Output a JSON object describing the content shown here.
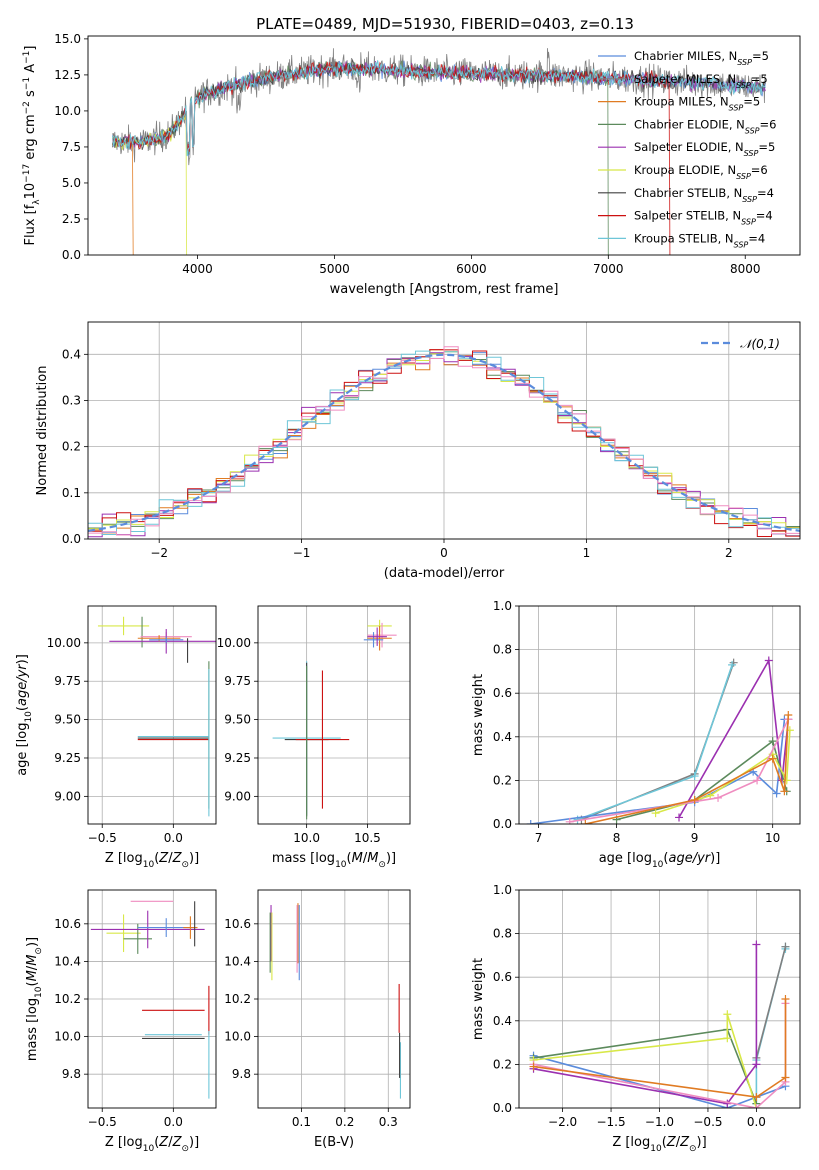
{
  "figure": {
    "title": "PLATE=0489, MJD=51930, FIBERID=0403, z=0.13"
  },
  "chart_data": [
    {
      "id": "spectrum",
      "type": "line",
      "xlabel": "wavelength [Angstrom, rest frame]",
      "ylabel": "Flux [f_λ10^-17 erg cm^-2 s^-1 A^-1]",
      "xlim": [
        3200,
        8400
      ],
      "ylim": [
        0,
        15.2
      ],
      "xticks": [
        4000,
        5000,
        6000,
        7000,
        8000
      ],
      "yticks": [
        0.0,
        2.5,
        5.0,
        7.5,
        10.0,
        12.5,
        15.0
      ],
      "xtick_labels": [
        "4000",
        "5000",
        "6000",
        "7000",
        "8000"
      ],
      "ytick_labels": [
        "0.0",
        "2.5",
        "5.0",
        "7.5",
        "10.0",
        "12.5",
        "15.0"
      ],
      "observed_color": "#808080",
      "legend_position": "top-right",
      "continuum": {
        "x": [
          3380,
          3600,
          3800,
          3950,
          4050,
          4200,
          4400,
          4700,
          5000,
          5300,
          5600,
          6000,
          6400,
          6800,
          7200,
          7600,
          8000,
          8150
        ],
        "y": [
          7.9,
          7.8,
          8.4,
          10.5,
          11.2,
          11.6,
          12.1,
          12.6,
          13.0,
          12.9,
          12.7,
          12.6,
          12.5,
          12.4,
          12.2,
          12.0,
          11.7,
          11.6
        ]
      },
      "models": [
        {
          "name": "Chabrier MILES, N_SSP=5",
          "color": "#5b8cdc",
          "drop_x": null
        },
        {
          "name": "Salpeter MILES, N_SSP=5",
          "color": "#7f7f7f",
          "drop_x": null
        },
        {
          "name": "Kroupa MILES, N_SSP=5",
          "color": "#e07b22",
          "drop_x": 3530
        },
        {
          "name": "Chabrier ELODIE, N_SSP=6",
          "color": "#5c8a5c",
          "drop_x": 7000
        },
        {
          "name": "Salpeter ELODIE, N_SSP=5",
          "color": "#9b30b0",
          "drop_x": null
        },
        {
          "name": "Kroupa ELODIE, N_SSP=6",
          "color": "#d8e848",
          "drop_x": 3920
        },
        {
          "name": "Chabrier STELIB, N_SSP=4",
          "color": "#404040",
          "drop_x": null
        },
        {
          "name": "Salpeter STELIB, N_SSP=4",
          "color": "#cc1111",
          "drop_x": 7450
        },
        {
          "name": "Kroupa STELIB, N_SSP=4",
          "color": "#6ec6d8",
          "drop_x": 3380
        }
      ]
    },
    {
      "id": "residuals",
      "type": "histogram",
      "xlabel": "(data-model)/error",
      "ylabel": "Normed distribution",
      "xlim": [
        -2.5,
        2.5
      ],
      "ylim": [
        0,
        0.47
      ],
      "xticks": [
        -2,
        -1,
        0,
        1,
        2
      ],
      "yticks": [
        0.0,
        0.1,
        0.2,
        0.3,
        0.4
      ],
      "xtick_labels": [
        "−2",
        "−1",
        "0",
        "1",
        "2"
      ],
      "ytick_labels": [
        "0.0",
        "0.1",
        "0.2",
        "0.3",
        "0.4"
      ],
      "bin_width": 0.1,
      "gaussian_label": "𝒩(0,1)",
      "gaussian_color": "#5b8cdc",
      "grid": true,
      "series_colors": [
        "#5b8cdc",
        "#e07b22",
        "#5c8a5c",
        "#9b30b0",
        "#d8e848",
        "#cc1111",
        "#6ec6d8",
        "#ef8dc0"
      ]
    },
    {
      "id": "age_vs_Z",
      "type": "errorbar",
      "xlabel": "Z [log10(Z/Z⊙)]",
      "ylabel": "age  [log10(age/yr)]",
      "xlim": [
        -0.6,
        0.3
      ],
      "ylim": [
        8.82,
        10.24
      ],
      "xticks": [
        -0.5,
        0.0
      ],
      "yticks": [
        9.0,
        9.25,
        9.5,
        9.75,
        10.0
      ],
      "xtick_labels": [
        "−0.5",
        "0.0"
      ],
      "ytick_labels": [
        "9.00",
        "9.25",
        "9.50",
        "9.75",
        "10.00"
      ],
      "points": [
        {
          "x": -0.35,
          "y": 10.11,
          "xerr": 0.18,
          "yerr": 0.06,
          "color": "#d8e848"
        },
        {
          "x": -0.22,
          "y": 10.07,
          "xerr": 0.0,
          "yerr": 0.1,
          "color": "#5c8a5c"
        },
        {
          "x": -0.05,
          "y": 10.04,
          "xerr": 0.18,
          "yerr": 0.03,
          "color": "#ef8dc0"
        },
        {
          "x": -0.05,
          "y": 10.01,
          "xerr": 0.4,
          "yerr": 0.08,
          "color": "#9b30b0"
        },
        {
          "x": -0.1,
          "y": 10.03,
          "xerr": 0.15,
          "yerr": 0.02,
          "color": "#e07b22"
        },
        {
          "x": -0.05,
          "y": 10.02,
          "xerr": 0.12,
          "yerr": 0.02,
          "color": "#5b8cdc"
        },
        {
          "x": 0.1,
          "y": 9.95,
          "xerr": 0.0,
          "yerr": 0.08,
          "color": "#404040"
        },
        {
          "x": 0.0,
          "y": 9.39,
          "xerr": 0.25,
          "yerr": 0.0,
          "color": "#6ec6d8"
        },
        {
          "x": 0.0,
          "y": 9.38,
          "xerr": 0.25,
          "yerr": 0.0,
          "color": "#404040"
        },
        {
          "x": 0.0,
          "y": 9.37,
          "xerr": 0.25,
          "yerr": 0.0,
          "color": "#cc1111"
        },
        {
          "x": 0.25,
          "y": 9.4,
          "xerr": 0.0,
          "yerr": 0.48,
          "color": "#5c8a5c"
        },
        {
          "x": 0.25,
          "y": 9.35,
          "xerr": 0.0,
          "yerr": 0.48,
          "color": "#6ec6d8"
        }
      ]
    },
    {
      "id": "age_vs_mass",
      "type": "errorbar",
      "xlabel": "mass [log10(M/M⊙)]",
      "ylabel": "",
      "xlim": [
        9.6,
        10.85
      ],
      "ylim": [
        8.82,
        10.24
      ],
      "xticks": [
        10.0,
        10.5
      ],
      "yticks": [
        9.0,
        9.25,
        9.5,
        9.75,
        10.0
      ],
      "xtick_labels": [
        "10.0",
        "10.5"
      ],
      "ytick_labels": [
        "9.00",
        "9.25",
        "9.50",
        "9.75",
        "10.00"
      ],
      "points": [
        {
          "x": 10.6,
          "y": 10.11,
          "xerr": 0.1,
          "yerr": 0.04,
          "color": "#d8e848"
        },
        {
          "x": 10.62,
          "y": 10.05,
          "xerr": 0.12,
          "yerr": 0.08,
          "color": "#ef8dc0"
        },
        {
          "x": 10.6,
          "y": 10.03,
          "xerr": 0.1,
          "yerr": 0.08,
          "color": "#e07b22"
        },
        {
          "x": 10.55,
          "y": 10.02,
          "xerr": 0.08,
          "yerr": 0.05,
          "color": "#5b8cdc"
        },
        {
          "x": 10.58,
          "y": 10.04,
          "xerr": 0.08,
          "yerr": 0.06,
          "color": "#9b30b0"
        },
        {
          "x": 10.0,
          "y": 9.38,
          "xerr": 0.28,
          "yerr": 0.5,
          "color": "#6ec6d8"
        },
        {
          "x": 10.0,
          "y": 9.37,
          "xerr": 0.18,
          "yerr": 0.5,
          "color": "#404040"
        },
        {
          "x": 10.13,
          "y": 9.37,
          "xerr": 0.22,
          "yerr": 0.45,
          "color": "#cc1111"
        },
        {
          "x": 10.0,
          "y": 9.35,
          "xerr": 0.0,
          "yerr": 0.5,
          "color": "#5c8a5c"
        }
      ]
    },
    {
      "id": "weight_vs_age",
      "type": "line",
      "xlabel": "age  [log10(age/yr)]",
      "ylabel": "mass weight",
      "xlim": [
        6.75,
        10.35
      ],
      "ylim": [
        0,
        1.0
      ],
      "xticks": [
        7,
        8,
        9,
        10
      ],
      "yticks": [
        0.0,
        0.2,
        0.4,
        0.6,
        0.8,
        1.0
      ],
      "xtick_labels": [
        "7",
        "8",
        "9",
        "10"
      ],
      "ytick_labels": [
        "0.0",
        "0.2",
        "0.4",
        "0.6",
        "0.8",
        "1.0"
      ],
      "grid": true,
      "series": [
        {
          "color": "#808080",
          "x": [
            7.55,
            9.0,
            9.5
          ],
          "y": [
            0.02,
            0.23,
            0.74
          ]
        },
        {
          "color": "#6ec6d8",
          "x": [
            7.5,
            9.0,
            9.48
          ],
          "y": [
            0.02,
            0.22,
            0.73
          ]
        },
        {
          "color": "#5b8cdc",
          "x": [
            6.9,
            9.0,
            9.75,
            10.05,
            10.15
          ],
          "y": [
            0.0,
            0.1,
            0.24,
            0.14,
            0.48
          ]
        },
        {
          "color": "#9b30b0",
          "x": [
            8.8,
            9.95,
            10.12,
            10.2
          ],
          "y": [
            0.03,
            0.75,
            0.2,
            0.48
          ]
        },
        {
          "color": "#5c8a5c",
          "x": [
            8.0,
            9.0,
            10.0,
            10.18
          ],
          "y": [
            0.02,
            0.11,
            0.38,
            0.15
          ]
        },
        {
          "color": "#d8e848",
          "x": [
            8.5,
            9.2,
            10.0,
            10.18,
            10.22
          ],
          "y": [
            0.05,
            0.13,
            0.32,
            0.2,
            0.43
          ]
        },
        {
          "color": "#ef8dc0",
          "x": [
            7.4,
            9.3,
            9.8,
            10.2
          ],
          "y": [
            0.01,
            0.12,
            0.2,
            0.48
          ]
        },
        {
          "color": "#e07b22",
          "x": [
            7.6,
            9.0,
            10.0,
            10.15,
            10.2
          ],
          "y": [
            0.0,
            0.11,
            0.3,
            0.15,
            0.5
          ]
        }
      ]
    },
    {
      "id": "mass_vs_Z",
      "type": "errorbar",
      "xlabel": "Z [log10(Z/Z⊙)]",
      "ylabel": "mass [log10(M/M⊙)]",
      "xlim": [
        -0.6,
        0.3
      ],
      "ylim": [
        9.62,
        10.78
      ],
      "xticks": [
        -0.5,
        0.0
      ],
      "yticks": [
        9.8,
        10.0,
        10.2,
        10.4,
        10.6
      ],
      "xtick_labels": [
        "−0.5",
        "0.0"
      ],
      "ytick_labels": [
        "9.8",
        "10.0",
        "10.2",
        "10.4",
        "10.6"
      ],
      "points": [
        {
          "x": -0.15,
          "y": 10.72,
          "xerr": 0.15,
          "yerr": 0.0,
          "color": "#ef8dc0"
        },
        {
          "x": -0.35,
          "y": 10.55,
          "xerr": 0.12,
          "yerr": 0.1,
          "color": "#d8e848"
        },
        {
          "x": -0.25,
          "y": 10.52,
          "xerr": 0.1,
          "yerr": 0.08,
          "color": "#5c8a5c"
        },
        {
          "x": -0.18,
          "y": 10.57,
          "xerr": 0.4,
          "yerr": 0.1,
          "color": "#9b30b0"
        },
        {
          "x": -0.05,
          "y": 10.58,
          "xerr": 0.2,
          "yerr": 0.05,
          "color": "#5b8cdc"
        },
        {
          "x": 0.12,
          "y": 10.58,
          "xerr": 0.05,
          "yerr": 0.06,
          "color": "#e07b22"
        },
        {
          "x": 0.15,
          "y": 10.6,
          "xerr": 0.0,
          "yerr": 0.12,
          "color": "#404040"
        },
        {
          "x": 0.0,
          "y": 10.14,
          "xerr": 0.22,
          "yerr": 0.0,
          "color": "#cc1111"
        },
        {
          "x": 0.0,
          "y": 10.01,
          "xerr": 0.2,
          "yerr": 0.0,
          "color": "#6ec6d8"
        },
        {
          "x": 0.0,
          "y": 9.99,
          "xerr": 0.22,
          "yerr": 0.0,
          "color": "#404040"
        },
        {
          "x": 0.25,
          "y": 10.14,
          "xerr": 0.0,
          "yerr": 0.13,
          "color": "#cc1111"
        },
        {
          "x": 0.25,
          "y": 9.85,
          "xerr": 0.0,
          "yerr": 0.18,
          "color": "#6ec6d8"
        }
      ]
    },
    {
      "id": "mass_vs_ebv",
      "type": "errorbar",
      "xlabel": "E(B-V)",
      "ylabel": "",
      "xlim": [
        0.0,
        0.35
      ],
      "ylim": [
        9.62,
        10.78
      ],
      "xticks": [
        0.1,
        0.2,
        0.3
      ],
      "yticks": [
        9.8,
        10.0,
        10.2,
        10.4,
        10.6
      ],
      "xtick_labels": [
        "0.1",
        "0.2",
        "0.3"
      ],
      "ytick_labels": [
        "9.8",
        "10.0",
        "10.2",
        "10.4",
        "10.6"
      ],
      "points": [
        {
          "x": 0.03,
          "y": 10.55,
          "xerr": 0.0,
          "yerr": 0.15,
          "color": "#9b30b0"
        },
        {
          "x": 0.032,
          "y": 10.48,
          "xerr": 0.0,
          "yerr": 0.18,
          "color": "#d8e848"
        },
        {
          "x": 0.028,
          "y": 10.5,
          "xerr": 0.0,
          "yerr": 0.16,
          "color": "#5c8a5c"
        },
        {
          "x": 0.092,
          "y": 10.55,
          "xerr": 0.0,
          "yerr": 0.16,
          "color": "#e07b22"
        },
        {
          "x": 0.095,
          "y": 10.5,
          "xerr": 0.0,
          "yerr": 0.2,
          "color": "#5b8cdc"
        },
        {
          "x": 0.09,
          "y": 10.52,
          "xerr": 0.0,
          "yerr": 0.18,
          "color": "#ef8dc0"
        },
        {
          "x": 0.325,
          "y": 10.15,
          "xerr": 0.0,
          "yerr": 0.13,
          "color": "#cc1111"
        },
        {
          "x": 0.328,
          "y": 9.82,
          "xerr": 0.0,
          "yerr": 0.15,
          "color": "#6ec6d8"
        },
        {
          "x": 0.326,
          "y": 9.9,
          "xerr": 0.0,
          "yerr": 0.12,
          "color": "#404040"
        }
      ]
    },
    {
      "id": "weight_vs_Z",
      "type": "line",
      "xlabel": "Z [log10(Z/Z⊙)]",
      "ylabel": "mass weight",
      "xlim": [
        -2.45,
        0.45
      ],
      "ylim": [
        0,
        1.0
      ],
      "xticks": [
        -2.0,
        -1.5,
        -1.0,
        -0.5,
        0.0
      ],
      "yticks": [
        0.0,
        0.2,
        0.4,
        0.6,
        0.8,
        1.0
      ],
      "xtick_labels": [
        "−2.0",
        "−1.5",
        "−1.0",
        "−0.5",
        "0.0"
      ],
      "ytick_labels": [
        "0.0",
        "0.2",
        "0.4",
        "0.6",
        "0.8",
        "1.0"
      ],
      "grid": true,
      "series": [
        {
          "color": "#6ec6d8",
          "x": [
            0.0,
            0.0,
            0.3,
            0.3
          ],
          "y": [
            0.02,
            0.22,
            0.74,
            0.73
          ]
        },
        {
          "color": "#808080",
          "x": [
            0.0,
            0.3
          ],
          "y": [
            0.23,
            0.74
          ]
        },
        {
          "color": "#5b8cdc",
          "x": [
            -2.3,
            -0.3,
            0.0,
            0.3
          ],
          "y": [
            0.24,
            0.0,
            0.05,
            0.1
          ]
        },
        {
          "color": "#5c8a5c",
          "x": [
            -2.3,
            -0.3,
            0.0
          ],
          "y": [
            0.23,
            0.36,
            0.02
          ]
        },
        {
          "color": "#d8e848",
          "x": [
            -2.3,
            -0.3,
            -0.3,
            0.0
          ],
          "y": [
            0.22,
            0.32,
            0.43,
            0.0
          ]
        },
        {
          "color": "#9b30b0",
          "x": [
            -2.3,
            -0.3,
            0.0,
            0.0
          ],
          "y": [
            0.18,
            0.02,
            0.2,
            0.75
          ]
        },
        {
          "color": "#ef8dc0",
          "x": [
            -2.3,
            0.0,
            0.3,
            0.3
          ],
          "y": [
            0.2,
            0.0,
            0.12,
            0.48
          ]
        },
        {
          "color": "#e07b22",
          "x": [
            -2.3,
            0.0,
            0.3,
            0.3
          ],
          "y": [
            0.19,
            0.05,
            0.14,
            0.5
          ]
        }
      ]
    }
  ]
}
